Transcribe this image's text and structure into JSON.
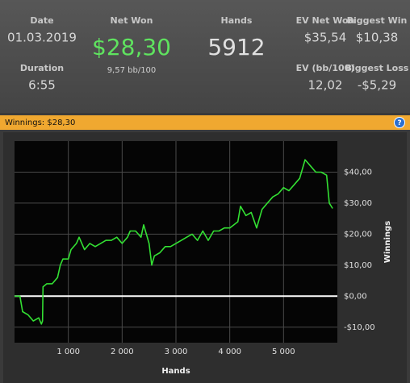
{
  "stats": [
    {
      "label": "Date",
      "value": "01.03.2019"
    },
    {
      "label": "Net Won",
      "value": "$28,30",
      "sub": "9,57 bb/100"
    },
    {
      "label": "Hands",
      "value": "5912"
    },
    {
      "label": "EV Net Won",
      "value": "$35,54"
    },
    {
      "label": "Biggest Win",
      "value": "$10,38"
    },
    {
      "label": "Duration",
      "value": "6:55"
    },
    {
      "label": "EV (bb/100)",
      "value": "12,02"
    },
    {
      "label": "Biggest Loss",
      "value": "-$5,29"
    }
  ],
  "bar_title": "Winnings: $28,30",
  "chart_data": {
    "type": "line",
    "x_label": "Hands",
    "y_label": "Winnings",
    "color": "#33e033",
    "zero_line_color": "#ffffff",
    "grid": true,
    "x": [
      0,
      100,
      150,
      250,
      350,
      450,
      500,
      520,
      530,
      600,
      700,
      800,
      850,
      900,
      1000,
      1050,
      1150,
      1200,
      1300,
      1400,
      1500,
      1600,
      1700,
      1800,
      1900,
      2000,
      2100,
      2150,
      2250,
      2350,
      2400,
      2500,
      2550,
      2600,
      2700,
      2800,
      2900,
      3000,
      3100,
      3200,
      3300,
      3400,
      3500,
      3600,
      3700,
      3800,
      3900,
      4000,
      4150,
      4200,
      4300,
      4400,
      4500,
      4600,
      4700,
      4800,
      4900,
      5000,
      5100,
      5200,
      5300,
      5400,
      5500,
      5600,
      5700,
      5800,
      5850,
      5912
    ],
    "values": [
      0,
      0,
      -5,
      -6,
      -8,
      -7,
      -9,
      -8,
      3,
      4,
      4,
      6,
      10,
      12,
      12,
      15,
      17,
      19,
      15,
      17,
      16,
      17,
      18,
      18,
      19,
      17,
      19,
      21,
      21,
      19,
      23,
      17,
      10,
      13,
      14,
      16,
      16,
      17,
      18,
      19,
      20,
      18,
      21,
      18,
      21,
      21,
      22,
      22,
      24,
      29,
      26,
      27,
      22,
      28,
      30,
      32,
      33,
      35,
      34,
      36,
      38,
      44,
      42,
      40,
      40,
      39,
      30,
      28.3
    ],
    "xlim": [
      0,
      6000
    ],
    "ylim": [
      -15,
      50
    ],
    "xticks": [
      {
        "value": 1000,
        "label": "1 000"
      },
      {
        "value": 2000,
        "label": "2 000"
      },
      {
        "value": 3000,
        "label": "3 000"
      },
      {
        "value": 4000,
        "label": "4 000"
      },
      {
        "value": 5000,
        "label": "5 000"
      }
    ],
    "yticks": [
      {
        "value": -10,
        "label": "-$10,00"
      },
      {
        "value": 0,
        "label": "$0,00"
      },
      {
        "value": 10,
        "label": "$10,00"
      },
      {
        "value": 20,
        "label": "$20,00"
      },
      {
        "value": 30,
        "label": "$30,00"
      },
      {
        "value": 40,
        "label": "$40,00"
      }
    ]
  }
}
